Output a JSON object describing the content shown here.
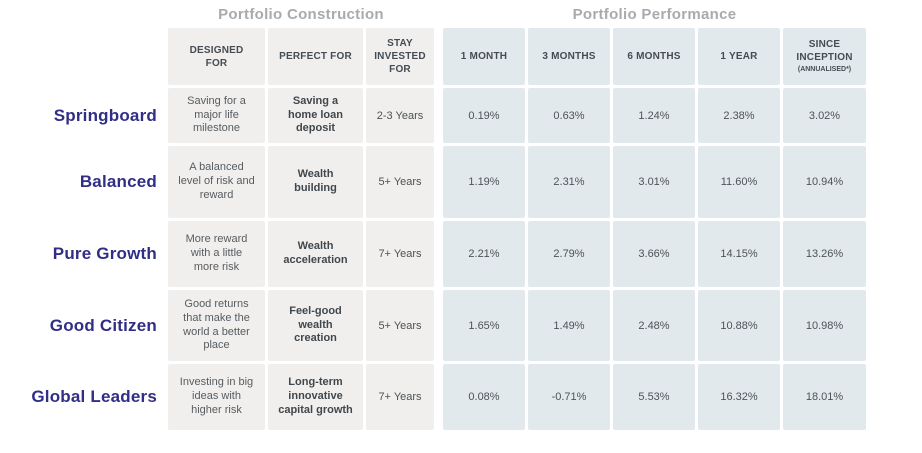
{
  "colors": {
    "construction_cell_bg": "#f0efed",
    "performance_cell_bg": "#e2e9ec",
    "portfolio_label_color": "#312e85",
    "section_title_color": "#a8abae",
    "header_text_color": "#454c53"
  },
  "section_titles": {
    "construction": "Portfolio Construction",
    "performance": "Portfolio Performance"
  },
  "columns": {
    "designed_for": "DESIGNED FOR",
    "perfect_for": "PERFECT FOR",
    "stay_invested": "STAY INVESTED FOR",
    "m1": "1 MONTH",
    "m3": "3 MONTHS",
    "m6": "6 MONTHS",
    "y1": "1 YEAR",
    "inception": "SINCE INCEPTION",
    "inception_note": "(ANNUALISED*)"
  },
  "rows": [
    {
      "name": "Springboard",
      "designed_for": "Saving for a major life milestone",
      "perfect_for": "Saving a home loan deposit",
      "stay_invested": "2-3 Years",
      "m1": "0.19%",
      "m3": "0.63%",
      "m6": "1.24%",
      "y1": "2.38%",
      "inception": "3.02%"
    },
    {
      "name": "Balanced",
      "designed_for": "A balanced level of risk and reward",
      "perfect_for": "Wealth building",
      "stay_invested": "5+ Years",
      "m1": "1.19%",
      "m3": "2.31%",
      "m6": "3.01%",
      "y1": "11.60%",
      "inception": "10.94%"
    },
    {
      "name": "Pure Growth",
      "designed_for": "More reward with a little more risk",
      "perfect_for": "Wealth acceleration",
      "stay_invested": "7+ Years",
      "m1": "2.21%",
      "m3": "2.79%",
      "m6": "3.66%",
      "y1": "14.15%",
      "inception": "13.26%"
    },
    {
      "name": "Good Citizen",
      "designed_for": "Good returns that make the world a better place",
      "perfect_for": "Feel-good wealth creation",
      "stay_invested": "5+ Years",
      "m1": "1.65%",
      "m3": "1.49%",
      "m6": "2.48%",
      "y1": "10.88%",
      "inception": "10.98%"
    },
    {
      "name": "Global Leaders",
      "designed_for": "Investing in big ideas with higher risk",
      "perfect_for": "Long-term innovative capital growth",
      "stay_invested": "7+ Years",
      "m1": "0.08%",
      "m3": "-0.71%",
      "m6": "5.53%",
      "y1": "16.32%",
      "inception": "18.01%"
    }
  ],
  "chart_data": {
    "type": "table",
    "title": "Portfolio Construction / Portfolio Performance",
    "column_groups": [
      {
        "label": "Portfolio Construction",
        "columns": [
          "DESIGNED FOR",
          "PERFECT FOR",
          "STAY INVESTED FOR"
        ]
      },
      {
        "label": "Portfolio Performance",
        "columns": [
          "1 MONTH",
          "3 MONTHS",
          "6 MONTHS",
          "1 YEAR",
          "SINCE INCEPTION (ANNUALISED*)"
        ]
      }
    ],
    "row_labels": [
      "Springboard",
      "Balanced",
      "Pure Growth",
      "Good Citizen",
      "Global Leaders"
    ],
    "rows": [
      [
        "Saving for a major life milestone",
        "Saving a home loan deposit",
        "2-3 Years",
        0.19,
        0.63,
        1.24,
        2.38,
        3.02
      ],
      [
        "A balanced level of risk and reward",
        "Wealth building",
        "5+ Years",
        1.19,
        2.31,
        3.01,
        11.6,
        10.94
      ],
      [
        "More reward with a little more risk",
        "Wealth acceleration",
        "7+ Years",
        2.21,
        2.79,
        3.66,
        14.15,
        13.26
      ],
      [
        "Good returns that make the world a better place",
        "Feel-good wealth creation",
        "5+ Years",
        1.65,
        1.49,
        2.48,
        10.88,
        10.98
      ],
      [
        "Investing in big ideas with higher risk",
        "Long-term innovative capital growth",
        "7+ Years",
        0.08,
        -0.71,
        5.53,
        16.32,
        18.01
      ]
    ],
    "value_unit": "%"
  }
}
